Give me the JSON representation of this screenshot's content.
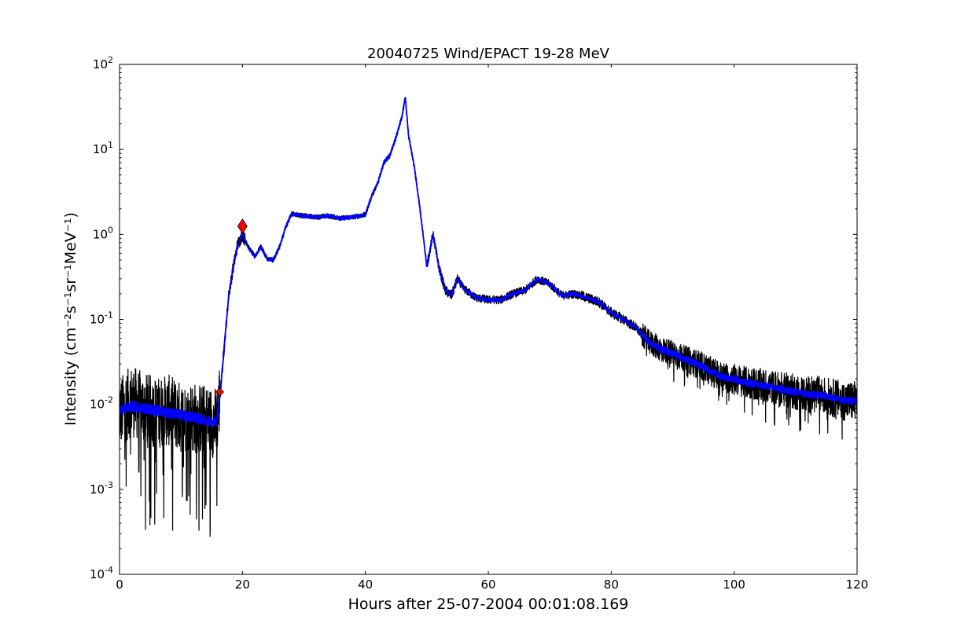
{
  "chart_data": {
    "type": "line",
    "title": "20040725 Wind/EPACT 19-28 MeV",
    "xlabel": "Hours after 25-07-2004 00:01:08.169",
    "ylabel": "Intensity (cm⁻²s⁻¹sr⁻¹MeV⁻¹)",
    "xlim": [
      0,
      120
    ],
    "ylim": [
      0.0001,
      100
    ],
    "yscale": "log",
    "grid": false,
    "x_ticks": [
      0,
      20,
      40,
      60,
      80,
      100,
      120
    ],
    "x_tick_labels": [
      "0",
      "20",
      "40",
      "60",
      "80",
      "100",
      "120"
    ],
    "y_ticks": [
      0.0001,
      0.001,
      0.01,
      0.1,
      1,
      10,
      100
    ],
    "y_tick_labels": [
      {
        "base": "10",
        "exp": "-4"
      },
      {
        "base": "10",
        "exp": "-3"
      },
      {
        "base": "10",
        "exp": "-2"
      },
      {
        "base": "10",
        "exp": "-1"
      },
      {
        "base": "10",
        "exp": "0"
      },
      {
        "base": "10",
        "exp": "1"
      },
      {
        "base": "10",
        "exp": "2"
      }
    ],
    "series": [
      {
        "style": "raw",
        "color": "#000000",
        "points": [
          [
            0,
            0.008
          ],
          [
            2,
            0.011
          ],
          [
            4,
            0.009
          ],
          [
            6,
            0.008
          ],
          [
            8,
            0.0085
          ],
          [
            10,
            0.007
          ],
          [
            12,
            0.007
          ],
          [
            14,
            0.0065
          ],
          [
            15.8,
            0.006
          ],
          [
            16.4,
            0.014
          ],
          [
            16.8,
            0.03
          ],
          [
            17.3,
            0.08
          ],
          [
            17.8,
            0.2
          ],
          [
            18.4,
            0.37
          ],
          [
            19.2,
            0.75
          ],
          [
            20,
            1.0
          ],
          [
            21,
            0.7
          ],
          [
            22,
            0.55
          ],
          [
            23,
            0.72
          ],
          [
            24,
            0.52
          ],
          [
            25,
            0.5
          ],
          [
            26,
            0.7
          ],
          [
            27,
            1.2
          ],
          [
            28,
            1.75
          ],
          [
            30,
            1.65
          ],
          [
            32,
            1.6
          ],
          [
            34,
            1.65
          ],
          [
            36,
            1.55
          ],
          [
            38,
            1.6
          ],
          [
            40,
            1.7
          ],
          [
            41,
            2.8
          ],
          [
            42,
            4.0
          ],
          [
            43,
            7.0
          ],
          [
            44,
            8.5
          ],
          [
            45,
            14.0
          ],
          [
            46,
            25.0
          ],
          [
            46.5,
            42.0
          ],
          [
            47,
            15.0
          ],
          [
            48,
            6.0
          ],
          [
            49,
            1.7
          ],
          [
            50,
            0.42
          ],
          [
            51,
            1.0
          ],
          [
            52,
            0.4
          ],
          [
            53,
            0.22
          ],
          [
            54,
            0.19
          ],
          [
            55,
            0.3
          ],
          [
            56,
            0.23
          ],
          [
            58,
            0.18
          ],
          [
            60,
            0.17
          ],
          [
            62,
            0.17
          ],
          [
            64,
            0.2
          ],
          [
            66,
            0.22
          ],
          [
            68,
            0.3
          ],
          [
            70,
            0.26
          ],
          [
            72,
            0.19
          ],
          [
            74,
            0.2
          ],
          [
            76,
            0.18
          ],
          [
            78,
            0.16
          ],
          [
            80,
            0.12
          ],
          [
            82,
            0.1
          ],
          [
            84,
            0.08
          ],
          [
            86,
            0.055
          ],
          [
            88,
            0.045
          ],
          [
            90,
            0.04
          ],
          [
            92,
            0.034
          ],
          [
            94,
            0.03
          ],
          [
            96,
            0.025
          ],
          [
            98,
            0.021
          ],
          [
            100,
            0.02
          ],
          [
            102,
            0.018
          ],
          [
            104,
            0.017
          ],
          [
            106,
            0.016
          ],
          [
            108,
            0.015
          ],
          [
            110,
            0.014
          ],
          [
            112,
            0.013
          ],
          [
            114,
            0.013
          ],
          [
            116,
            0.012
          ],
          [
            118,
            0.011
          ],
          [
            120,
            0.011
          ]
        ]
      },
      {
        "style": "smoothed",
        "color": "#0000ff",
        "points": [
          [
            0,
            0.0085
          ],
          [
            2,
            0.0095
          ],
          [
            4,
            0.009
          ],
          [
            6,
            0.0085
          ],
          [
            8,
            0.008
          ],
          [
            10,
            0.0075
          ],
          [
            12,
            0.007
          ],
          [
            14,
            0.0065
          ],
          [
            15.8,
            0.006
          ],
          [
            16.4,
            0.014
          ],
          [
            16.8,
            0.03
          ],
          [
            17.3,
            0.08
          ],
          [
            17.8,
            0.2
          ],
          [
            18.4,
            0.37
          ],
          [
            19.2,
            0.75
          ],
          [
            20,
            1.0
          ],
          [
            21,
            0.7
          ],
          [
            22,
            0.55
          ],
          [
            23,
            0.72
          ],
          [
            24,
            0.52
          ],
          [
            25,
            0.5
          ],
          [
            26,
            0.7
          ],
          [
            27,
            1.2
          ],
          [
            28,
            1.75
          ],
          [
            30,
            1.65
          ],
          [
            32,
            1.6
          ],
          [
            34,
            1.65
          ],
          [
            36,
            1.55
          ],
          [
            38,
            1.6
          ],
          [
            40,
            1.7
          ],
          [
            41,
            2.8
          ],
          [
            42,
            4.0
          ],
          [
            43,
            7.0
          ],
          [
            44,
            8.5
          ],
          [
            45,
            14.0
          ],
          [
            46,
            25.0
          ],
          [
            46.5,
            42.0
          ],
          [
            47,
            15.0
          ],
          [
            48,
            6.0
          ],
          [
            49,
            1.7
          ],
          [
            50,
            0.42
          ],
          [
            51,
            1.0
          ],
          [
            52,
            0.4
          ],
          [
            53,
            0.22
          ],
          [
            54,
            0.19
          ],
          [
            55,
            0.3
          ],
          [
            56,
            0.23
          ],
          [
            58,
            0.18
          ],
          [
            60,
            0.17
          ],
          [
            62,
            0.17
          ],
          [
            64,
            0.2
          ],
          [
            66,
            0.22
          ],
          [
            68,
            0.3
          ],
          [
            70,
            0.26
          ],
          [
            72,
            0.19
          ],
          [
            74,
            0.2
          ],
          [
            76,
            0.18
          ],
          [
            78,
            0.16
          ],
          [
            80,
            0.12
          ],
          [
            82,
            0.1
          ],
          [
            84,
            0.08
          ],
          [
            86,
            0.055
          ],
          [
            88,
            0.045
          ],
          [
            90,
            0.04
          ],
          [
            92,
            0.034
          ],
          [
            94,
            0.03
          ],
          [
            96,
            0.025
          ],
          [
            98,
            0.021
          ],
          [
            100,
            0.02
          ],
          [
            102,
            0.018
          ],
          [
            104,
            0.017
          ],
          [
            106,
            0.016
          ],
          [
            108,
            0.015
          ],
          [
            110,
            0.014
          ],
          [
            112,
            0.013
          ],
          [
            114,
            0.013
          ],
          [
            116,
            0.012
          ],
          [
            118,
            0.011
          ],
          [
            120,
            0.011
          ]
        ]
      }
    ],
    "markers": [
      {
        "shape": "diamond",
        "x": 16.3,
        "y": 0.014,
        "color": "#ff0000",
        "size": "small"
      },
      {
        "shape": "diamond",
        "x": 20.0,
        "y": 1.25,
        "color": "#ff0000",
        "size": "large"
      }
    ]
  }
}
